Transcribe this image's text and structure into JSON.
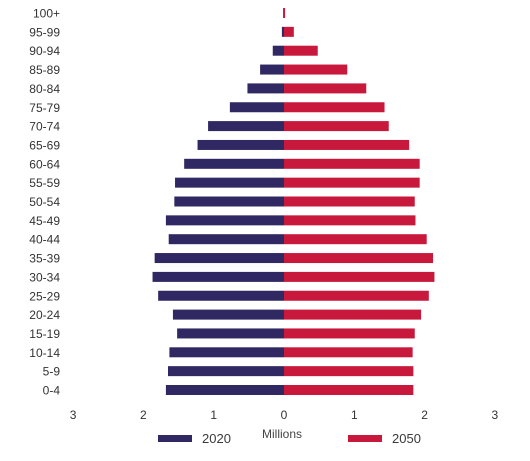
{
  "chart_data": {
    "type": "bar",
    "orientation": "horizontal-population-pyramid",
    "categories": [
      "100+",
      "95-99",
      "90-94",
      "85-89",
      "80-84",
      "75-79",
      "70-74",
      "65-69",
      "60-64",
      "55-59",
      "50-54",
      "45-49",
      "40-44",
      "35-39",
      "30-34",
      "25-29",
      "20-24",
      "15-19",
      "10-14",
      "5-9",
      "0-4"
    ],
    "series": [
      {
        "name": "2020",
        "color": "#2f2862",
        "side": "left",
        "values": [
          0.003,
          0.03,
          0.16,
          0.34,
          0.52,
          0.77,
          1.08,
          1.23,
          1.42,
          1.55,
          1.56,
          1.68,
          1.64,
          1.84,
          1.87,
          1.79,
          1.58,
          1.52,
          1.63,
          1.65,
          1.68
        ]
      },
      {
        "name": "2050",
        "color": "#c8193c",
        "side": "right",
        "values": [
          0.015,
          0.14,
          0.48,
          0.9,
          1.17,
          1.43,
          1.49,
          1.78,
          1.93,
          1.93,
          1.86,
          1.87,
          2.03,
          2.12,
          2.14,
          2.06,
          1.95,
          1.86,
          1.83,
          1.84,
          1.84
        ]
      }
    ],
    "xlabel": "Millions",
    "xticks": [
      "3",
      "2",
      "1",
      "0",
      "1",
      "2",
      "3"
    ],
    "xlim": [
      -3,
      3
    ],
    "legend": "bottom",
    "grid": false
  }
}
